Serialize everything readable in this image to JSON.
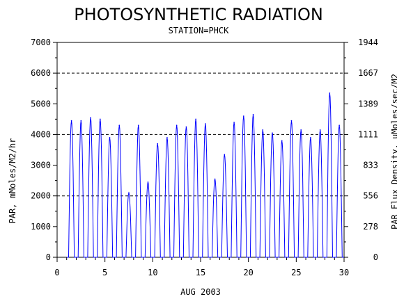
{
  "chart_data": {
    "type": "line",
    "title": "PHOTOSYNTHETIC RADIATION",
    "subtitle": "STATION=PHCK",
    "xlabel": "AUG 2003",
    "ylabel": "PAR, mMoles/M2/hr",
    "ylabel_right": "PAR Flux Density, uMoles/sec/M2",
    "xlim": [
      0,
      30
    ],
    "ylim": [
      0,
      7000
    ],
    "x_ticks": [
      "0",
      "5",
      "10",
      "15",
      "20",
      "25",
      "30"
    ],
    "y_ticks": [
      "0",
      "1000",
      "2000",
      "3000",
      "4000",
      "5000",
      "6000",
      "7000"
    ],
    "y_right_ticks": [
      "0",
      "278",
      "556",
      "833",
      "1111",
      "1389",
      "1667",
      "1944"
    ],
    "grid": "horizontal dashed at 2000, 4000, 6000",
    "line_color": "#0000ff",
    "series": [
      {
        "daily_peaks": [
          {
            "x": 1.5,
            "y": 4450
          },
          {
            "x": 2.5,
            "y": 4450
          },
          {
            "x": 3.5,
            "y": 4550
          },
          {
            "x": 4.5,
            "y": 4500
          },
          {
            "x": 5.5,
            "y": 3900
          },
          {
            "x": 6.5,
            "y": 4300
          },
          {
            "x": 7.5,
            "y": 2100
          },
          {
            "x": 8.5,
            "y": 4300
          },
          {
            "x": 9.5,
            "y": 2450
          },
          {
            "x": 10.5,
            "y": 3700
          },
          {
            "x": 11.5,
            "y": 3900
          },
          {
            "x": 12.5,
            "y": 4300
          },
          {
            "x": 13.5,
            "y": 4250
          },
          {
            "x": 14.5,
            "y": 4500
          },
          {
            "x": 15.5,
            "y": 4350
          },
          {
            "x": 16.5,
            "y": 2550
          },
          {
            "x": 17.5,
            "y": 3350
          },
          {
            "x": 18.5,
            "y": 4400
          },
          {
            "x": 19.5,
            "y": 4600
          },
          {
            "x": 20.5,
            "y": 4650
          },
          {
            "x": 21.5,
            "y": 4150
          },
          {
            "x": 22.5,
            "y": 4050
          },
          {
            "x": 23.5,
            "y": 3800
          },
          {
            "x": 24.5,
            "y": 4450
          },
          {
            "x": 25.5,
            "y": 4150
          },
          {
            "x": 26.5,
            "y": 3900
          },
          {
            "x": 27.5,
            "y": 4150
          },
          {
            "x": 28.5,
            "y": 5350
          },
          {
            "x": 29.5,
            "y": 4300
          }
        ]
      }
    ]
  }
}
